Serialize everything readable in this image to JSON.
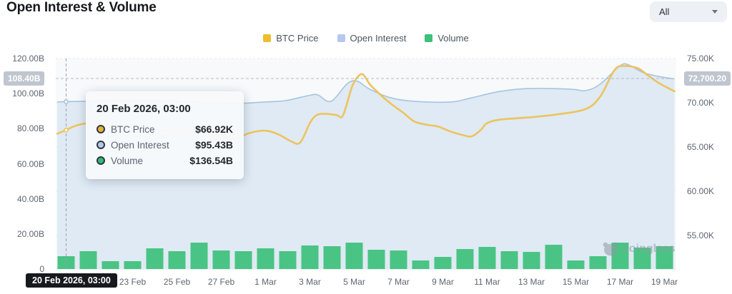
{
  "header": {
    "title": "Open Interest & Volume",
    "range_selector": {
      "value": "All"
    }
  },
  "legend": [
    {
      "label": "BTC Price",
      "color": "#efbc2d"
    },
    {
      "label": "Open Interest",
      "color": "#b5c9f0"
    },
    {
      "label": "Volume",
      "color": "#3cc07c"
    }
  ],
  "tooltip": {
    "date": "20 Feb 2026, 03:00",
    "rows": [
      {
        "label": "BTC Price",
        "value": "$66.92K",
        "color": "#e9b233"
      },
      {
        "label": "Open Interest",
        "value": "$95.43B",
        "color": "#b6c8ea"
      },
      {
        "label": "Volume",
        "value": "$136.54B",
        "color": "#35b87a"
      }
    ]
  },
  "axes": {
    "left": {
      "ticks": [
        "120.00B",
        "100.00B",
        "80.00B",
        "60.00B",
        "40.00B",
        "20.00B",
        "0"
      ],
      "pointer_label": "108.40B"
    },
    "right": {
      "ticks": [
        "75.00K",
        "70.00K",
        "65.00K",
        "60.00K",
        "55.00K"
      ],
      "pointer_label": "72,700.20"
    },
    "x": {
      "ticks": [
        "23 Feb",
        "25 Feb",
        "27 Feb",
        "1 Mar",
        "3 Mar",
        "5 Mar",
        "7 Mar",
        "9 Mar",
        "11 Mar",
        "13 Mar",
        "15 Mar",
        "17 Mar",
        "19 Mar"
      ],
      "pointer_label": "20 Feb 2026, 03:00"
    }
  },
  "watermark": "coinglass",
  "chart_data": {
    "type": "mixed",
    "title": "Open Interest & Volume",
    "x_axis": {
      "start": "20 Feb 2026",
      "end": "19 Mar 2026",
      "tick_labels": [
        "23 Feb",
        "25 Feb",
        "27 Feb",
        "1 Mar",
        "3 Mar",
        "5 Mar",
        "7 Mar",
        "9 Mar",
        "11 Mar",
        "13 Mar",
        "15 Mar",
        "17 Mar",
        "19 Mar"
      ],
      "tick_day_indices": [
        3,
        5,
        7,
        9,
        11,
        13,
        15,
        17,
        19,
        21,
        23,
        25,
        27
      ]
    },
    "left_axis": {
      "unit": "USD billions",
      "ticks": [
        120,
        100,
        80,
        60,
        40,
        20,
        0
      ],
      "applies_to": "Open Interest"
    },
    "right_axis": {
      "unit": "USD thousands",
      "ticks": [
        75,
        70,
        65,
        60,
        55
      ],
      "applies_to": "BTC Price"
    },
    "grid": "dashed-horizontal",
    "legend_position": "top-center",
    "series": [
      {
        "name": "BTC Price",
        "type": "line",
        "axis": "right",
        "color": "#edc35d",
        "unit": "K USD",
        "points_day_value": [
          [
            -0.4,
            66.5
          ],
          [
            0,
            66.92
          ],
          [
            0.56,
            67.5
          ],
          [
            1.5,
            67.8
          ],
          [
            2.5,
            67.2
          ],
          [
            3.5,
            67.5
          ],
          [
            4.4,
            66.8
          ],
          [
            5.4,
            67.0
          ],
          [
            6.4,
            66.5
          ],
          [
            7.0,
            66.3
          ],
          [
            7.7,
            66.05
          ],
          [
            8.3,
            66.6
          ],
          [
            9.0,
            66.85
          ],
          [
            9.6,
            66.4
          ],
          [
            10.15,
            65.65
          ],
          [
            10.56,
            65.5
          ],
          [
            11.0,
            67.7
          ],
          [
            11.3,
            68.6
          ],
          [
            11.7,
            68.75
          ],
          [
            12.2,
            68.6
          ],
          [
            12.45,
            68.4
          ],
          [
            12.65,
            69.7
          ],
          [
            12.9,
            71.8
          ],
          [
            13.15,
            72.9
          ],
          [
            13.4,
            73.2
          ],
          [
            13.7,
            72.1
          ],
          [
            14.1,
            71.1
          ],
          [
            14.65,
            69.9
          ],
          [
            15.2,
            68.9
          ],
          [
            15.7,
            67.9
          ],
          [
            16.3,
            67.5
          ],
          [
            16.8,
            67.3
          ],
          [
            17.35,
            66.75
          ],
          [
            17.9,
            66.35
          ],
          [
            18.3,
            66.2
          ],
          [
            18.7,
            66.9
          ],
          [
            19.0,
            67.7
          ],
          [
            19.6,
            68.1
          ],
          [
            20.9,
            68.35
          ],
          [
            22.2,
            68.7
          ],
          [
            23.45,
            69.3
          ],
          [
            24.1,
            70.7
          ],
          [
            24.75,
            73.7
          ],
          [
            25.2,
            74.15
          ],
          [
            25.8,
            73.9
          ],
          [
            26.25,
            73.1
          ],
          [
            26.7,
            72.3
          ],
          [
            27.1,
            71.75
          ],
          [
            27.45,
            71.3
          ]
        ]
      },
      {
        "name": "Open Interest",
        "type": "area",
        "axis": "left",
        "color": "#a6c4e0",
        "fill": "#dfeaf4",
        "unit": "B USD",
        "points_day_value": [
          [
            -0.4,
            95.2
          ],
          [
            0,
            95.43
          ],
          [
            1.85,
            95.8
          ],
          [
            3.5,
            95.9
          ],
          [
            5.1,
            95.5
          ],
          [
            6.5,
            95.0
          ],
          [
            7.7,
            94.4
          ],
          [
            8.95,
            95.2
          ],
          [
            9.9,
            96.0
          ],
          [
            10.9,
            98.8
          ],
          [
            11.35,
            99.3
          ],
          [
            11.95,
            95.6
          ],
          [
            12.7,
            105.8
          ],
          [
            13.15,
            107.0
          ],
          [
            13.7,
            102.5
          ],
          [
            14.65,
            97.6
          ],
          [
            15.7,
            95.6
          ],
          [
            17.35,
            95.2
          ],
          [
            18.3,
            97.6
          ],
          [
            19.6,
            101.3
          ],
          [
            20.9,
            102.9
          ],
          [
            22.8,
            102.5
          ],
          [
            23.45,
            101.7
          ],
          [
            24.1,
            105.4
          ],
          [
            25.0,
            115.9
          ],
          [
            25.4,
            116.3
          ],
          [
            26.05,
            111.9
          ],
          [
            26.9,
            109.4
          ],
          [
            27.45,
            108.4
          ]
        ]
      },
      {
        "name": "Volume",
        "type": "bar",
        "axis": "hidden",
        "color": "#4ac484",
        "unit": "B USD (estimated)",
        "dates": [
          "20 Feb",
          "21 Feb",
          "22 Feb",
          "23 Feb",
          "24 Feb",
          "25 Feb",
          "26 Feb",
          "27 Feb",
          "28 Feb",
          "1 Mar",
          "2 Mar",
          "3 Mar",
          "4 Mar",
          "5 Mar",
          "6 Mar",
          "7 Mar",
          "8 Mar",
          "9 Mar",
          "10 Mar",
          "11 Mar",
          "12 Mar",
          "13 Mar",
          "14 Mar",
          "15 Mar",
          "16 Mar",
          "17 Mar",
          "18 Mar",
          "19 Mar"
        ],
        "values": [
          136.5,
          189.6,
          83.4,
          83.4,
          219.9,
          189.6,
          280.6,
          197.2,
          189.6,
          219.9,
          189.6,
          250.3,
          242.7,
          280.6,
          204.8,
          197.2,
          91.0,
          129.0,
          212.3,
          235.1,
          189.6,
          182.1,
          257.9,
          91.0,
          136.5,
          280.6,
          227.5,
          242.7
        ]
      }
    ],
    "crosshair": {
      "day_index": 0,
      "x_readout": "20 Feb 2026, 03:00",
      "left_axis_readout": "108.40B",
      "right_axis_readout": "72,700.20",
      "hovered": {
        "btc_price": "$66.92K",
        "open_interest": "$95.43B",
        "volume": "$136.54B"
      }
    }
  }
}
